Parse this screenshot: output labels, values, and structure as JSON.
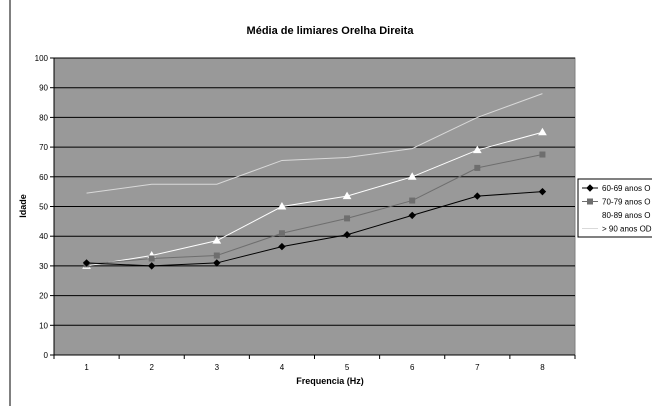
{
  "chart_data": {
    "type": "line",
    "title": "Média de limiares Orelha Direita",
    "xlabel": "Frequencia (Hz)",
    "ylabel": "Idade",
    "categories": [
      "1",
      "2",
      "3",
      "4",
      "5",
      "6",
      "7",
      "8"
    ],
    "ylim": [
      0,
      100
    ],
    "yticks": [
      "0",
      "10",
      "20",
      "30",
      "40",
      "50",
      "60",
      "70",
      "80",
      "90",
      "100"
    ],
    "grid": true,
    "legend_position": "right",
    "series": [
      {
        "name": "60-69 anos O",
        "values": [
          31,
          30,
          31,
          36.5,
          40.5,
          47,
          53.5,
          55
        ],
        "color": "#000000",
        "marker": "diamond"
      },
      {
        "name": "70-79 anos O",
        "values": [
          30.5,
          32.5,
          33.5,
          41,
          46,
          52,
          63,
          67.5
        ],
        "color": "#6e6e6e",
        "marker": "square"
      },
      {
        "name": "80-89 anos O",
        "values": [
          30,
          33.5,
          38.5,
          50,
          53.5,
          60,
          69,
          75
        ],
        "color": "#ffffff",
        "marker": "triangle"
      },
      {
        "name": "> 90 anos OD",
        "values": [
          54.5,
          57.5,
          57.5,
          65.5,
          66.5,
          69.5,
          80,
          88
        ],
        "color": "#d9d9d9",
        "marker": "none"
      }
    ],
    "plot_background": "#999999"
  }
}
